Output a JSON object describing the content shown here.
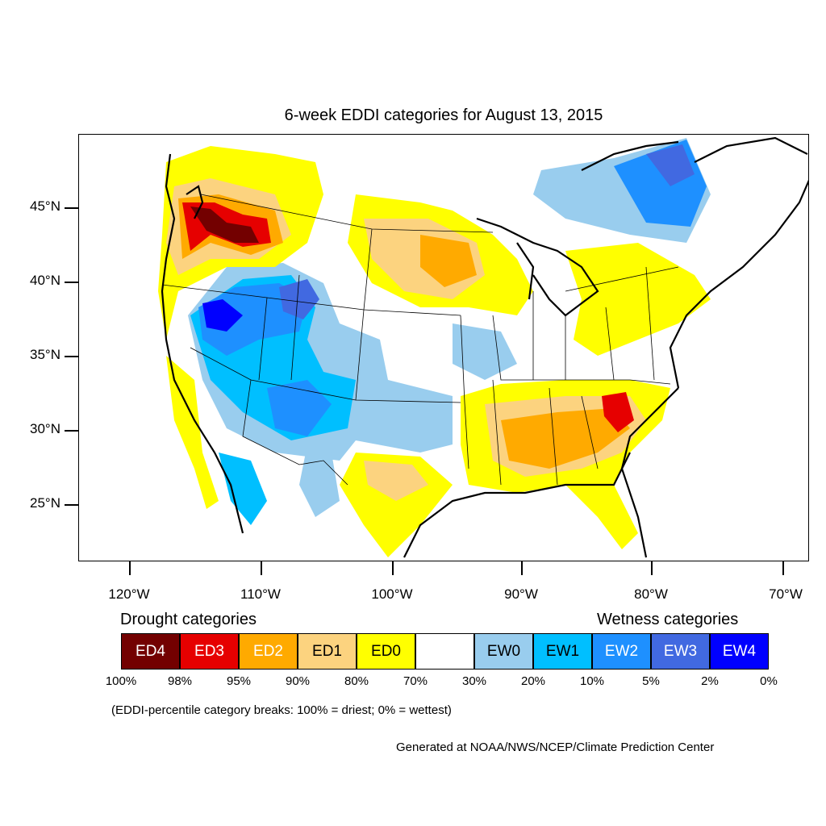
{
  "title": "6-week EDDI categories for August 13, 2015",
  "lat_labels": [
    "45°N",
    "40°N",
    "35°N",
    "30°N",
    "25°N"
  ],
  "lon_labels": [
    "120°W",
    "110°W",
    "100°W",
    "90°W",
    "80°W",
    "70°W"
  ],
  "legend": {
    "drought_heading": "Drought categories",
    "wetness_heading": "Wetness categories",
    "categories": [
      {
        "label": "ED4",
        "color": "#730000",
        "text_color": "#ffffff"
      },
      {
        "label": "ED3",
        "color": "#e60000",
        "text_color": "#ffffff"
      },
      {
        "label": "ED2",
        "color": "#ffaa00",
        "text_color": "#ffffff"
      },
      {
        "label": "ED1",
        "color": "#fcd37f",
        "text_color": "#000000"
      },
      {
        "label": "ED0",
        "color": "#ffff00",
        "text_color": "#000000"
      },
      {
        "label": "",
        "color": "#ffffff",
        "text_color": "#000000"
      },
      {
        "label": "EW0",
        "color": "#99cdee",
        "text_color": "#000000"
      },
      {
        "label": "EW1",
        "color": "#00bfff",
        "text_color": "#000000"
      },
      {
        "label": "EW2",
        "color": "#1e90ff",
        "text_color": "#ffffff"
      },
      {
        "label": "EW3",
        "color": "#4169e1",
        "text_color": "#ffffff"
      },
      {
        "label": "EW4",
        "color": "#0000ff",
        "text_color": "#ffffff"
      }
    ],
    "percent_breaks": [
      "100%",
      "98%",
      "95%",
      "90%",
      "80%",
      "70%",
      "30%",
      "20%",
      "10%",
      "5%",
      "2%",
      "0%"
    ],
    "note": "(EDDI-percentile category breaks: 100% = driest; 0% = wettest)"
  },
  "credit": "Generated at NOAA/NWS/NCEP/Climate Prediction Center"
}
